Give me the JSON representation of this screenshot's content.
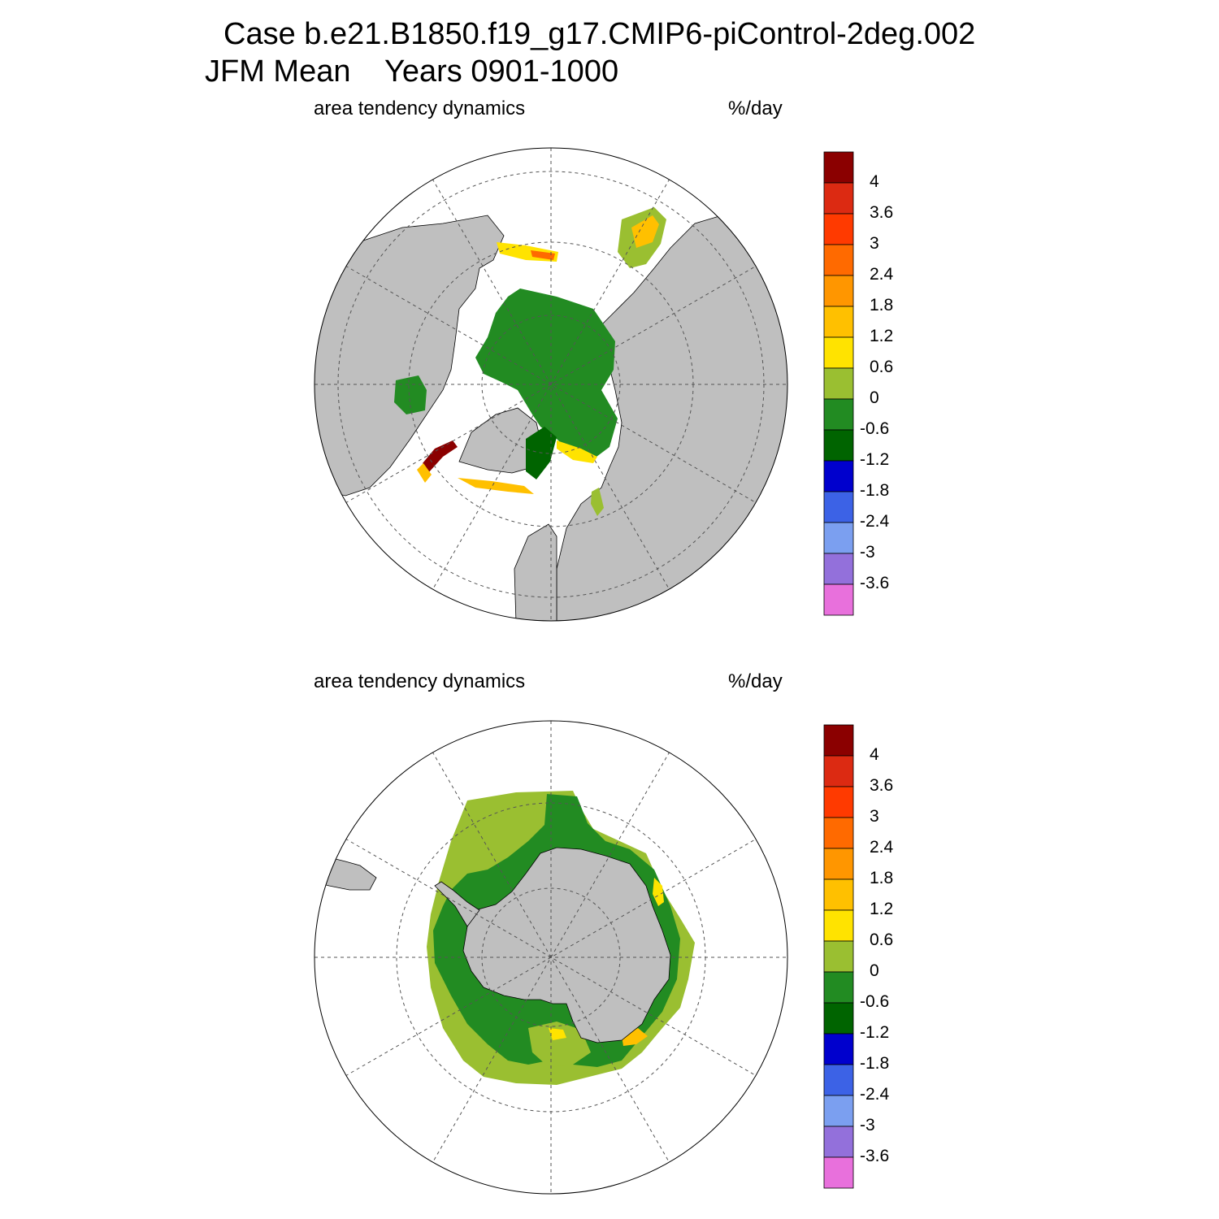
{
  "header": {
    "line1": "Case b.e21.B1850.f19_g17.CMIP6-piControl-2deg.002",
    "line2": "JFM Mean    Years 0901-1000"
  },
  "panels": [
    {
      "id": "nh",
      "hemisphere": "north",
      "left_label": "area tendency dynamics",
      "right_label": "%/day"
    },
    {
      "id": "sh",
      "hemisphere": "south",
      "left_label": "area tendency dynamics",
      "right_label": "%/day"
    }
  ],
  "colorbar": {
    "labels": [
      "4",
      "3.6",
      "3",
      "2.4",
      "1.8",
      "1.2",
      "0.6",
      "0",
      "-0.6",
      "-1.2",
      "-1.8",
      "-2.4",
      "-3",
      "-3.6"
    ],
    "colors": [
      "#8b0000",
      "#dc2a12",
      "#ff3a00",
      "#ff6a00",
      "#ff9600",
      "#ffc000",
      "#ffe300",
      "#9abf31",
      "#228b22",
      "#006400",
      "#0000cd",
      "#3c62e6",
      "#7b9ff0",
      "#9370db",
      "#e870dc"
    ]
  },
  "colors": {
    "land": "#bfbfbf",
    "ocean": "#ffffff"
  }
}
